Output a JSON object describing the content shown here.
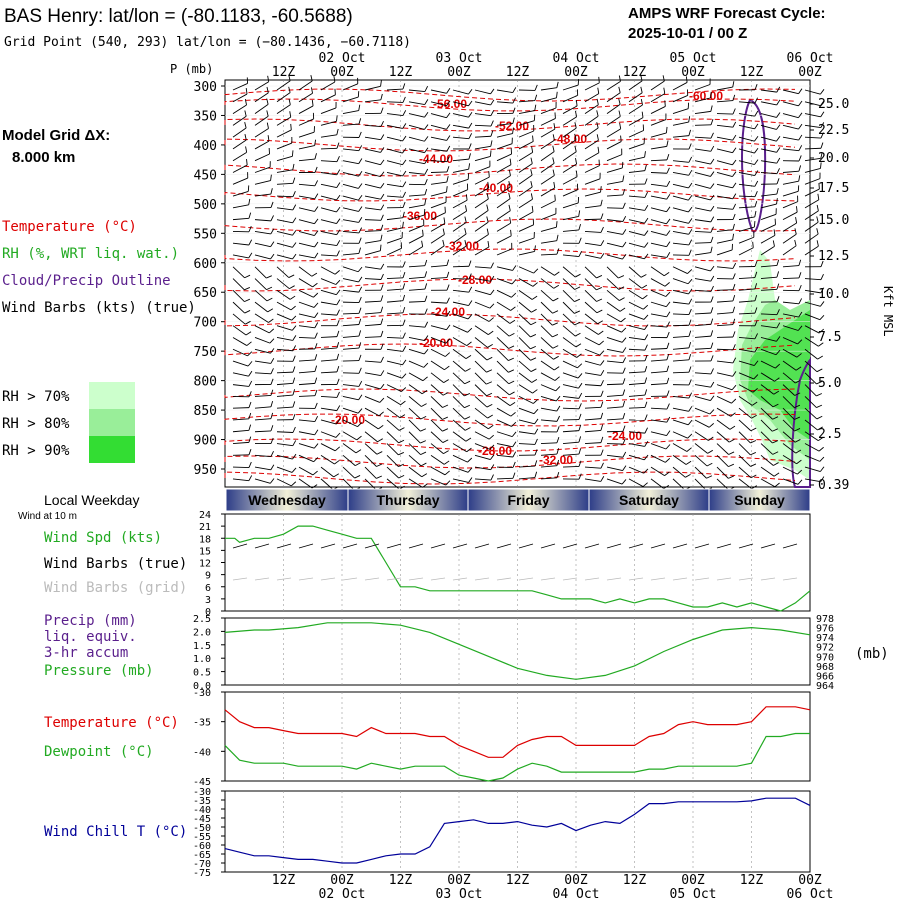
{
  "header": {
    "station_title": "BAS Henry:  lat/lon = (-80.1183, -60.5688)",
    "grid_point": "Grid Point (540, 293) lat/lon = (−80.1436, −60.7118)",
    "cycle_label": "AMPS WRF Forecast Cycle:",
    "cycle_value": "2025-10-01 / 00  Z",
    "model_grid_label": "Model Grid ΔX:",
    "model_grid_value": "8.000 km"
  },
  "legend_left": {
    "temperature": "Temperature (°C)",
    "rh": "RH (%, WRT liq. wat.)",
    "cloud": "Cloud/Precip Outline",
    "wind_barbs": "Wind Barbs (kts) (true)",
    "rh_levels": [
      "RH > 70%",
      "RH > 80%",
      "RH > 90%"
    ],
    "local_weekday": "Local Weekday",
    "wind_at_10m": "Wind at 10 m",
    "wind_spd": "Wind Spd (kts)",
    "wind_barbs_true": "Wind Barbs (true)",
    "wind_barbs_grid": "Wind Barbs (grid)",
    "precip": "Precip (mm)",
    "liq_equiv": "liq. equiv.",
    "accum": "3-hr accum",
    "pressure": "Pressure (mb)",
    "temp2": "Temperature (°C)",
    "dewpoint": "Dewpoint (°C)",
    "wind_chill": "Wind Chill T (°C)"
  },
  "colors": {
    "temperature": "#dd0000",
    "rh70": "#ccffcc",
    "rh80": "#99ee99",
    "rh90": "#33dd33",
    "cloud": "#5a1f8c",
    "wind_chill": "#000099",
    "weekday_band": "#3b4a8a"
  },
  "chart_data": [
    {
      "type": "line",
      "panel": "upper-air cross section",
      "y_axis_label": "P (mb)",
      "y_ticks": [
        "300",
        "350",
        "400",
        "450",
        "500",
        "550",
        "600",
        "650",
        "700",
        "750",
        "800",
        "850",
        "900",
        "950"
      ],
      "right_axis_label": "Kft MSL",
      "right_ticks": [
        "25.0",
        "22.5",
        "20.0",
        "17.5",
        "15.0",
        "12.5",
        "10.0",
        "7.5",
        "5.0",
        "2.5",
        "0.39"
      ],
      "top_time_ticks": [
        "12Z",
        "00Z",
        "12Z",
        "00Z",
        "12Z",
        "00Z",
        "12Z",
        "00Z",
        "12Z",
        "00Z"
      ],
      "top_dates": [
        "02 Oct",
        "03 Oct",
        "04 Oct",
        "05 Oct",
        "06 Oct"
      ],
      "isotherm_labels": [
        "-56.00",
        "-52.00",
        "-48.00",
        "-44.00",
        "-40.00",
        "-36.00",
        "-32.00",
        "-28.00",
        "-24.00",
        "-20.00",
        "-20.00",
        "-24.00",
        "-28.00",
        "-32.00",
        "-60.00"
      ]
    },
    {
      "type": "line",
      "panel": "10 m wind speed",
      "y_ticks": [
        "24",
        "21",
        "18",
        "15",
        "12",
        "9",
        "6",
        "3",
        "0"
      ],
      "ylim": [
        0,
        24
      ],
      "series": [
        {
          "name": "Wind Spd (kts)",
          "x": [
            0,
            2,
            3,
            6,
            9,
            12,
            15,
            18,
            21,
            24,
            27,
            30,
            33,
            36,
            39,
            42,
            45,
            48,
            51,
            54,
            57,
            60,
            63,
            66,
            69,
            72,
            75,
            78,
            81,
            84,
            87,
            90,
            93,
            96,
            99,
            102,
            105,
            108,
            111,
            114,
            117,
            120
          ],
          "values": [
            18,
            18,
            17,
            18,
            18,
            19,
            21,
            21,
            20,
            19,
            18,
            18,
            12,
            6,
            6,
            5,
            5,
            5,
            5,
            5,
            5,
            5,
            5,
            4,
            3,
            3,
            3,
            2,
            3,
            2,
            3,
            3,
            2,
            1,
            1,
            2,
            1,
            2,
            1,
            0,
            2,
            5
          ]
        }
      ]
    },
    {
      "type": "line",
      "panel": "precip and pressure",
      "y_ticks": [
        "2.5",
        "2.0",
        "1.5",
        "1.0",
        "0.5",
        "0.0"
      ],
      "right_ticks": [
        "978",
        "976",
        "974",
        "972",
        "970",
        "968",
        "966",
        "964"
      ],
      "right_axis_label": "(mb)",
      "series": [
        {
          "name": "Pressure (mb)",
          "x": [
            0,
            6,
            9,
            15,
            21,
            24,
            30,
            36,
            42,
            48,
            54,
            60,
            66,
            72,
            78,
            84,
            90,
            96,
            102,
            108,
            114,
            120
          ],
          "values": [
            975,
            975.5,
            975.5,
            976,
            977,
            977,
            977,
            976.5,
            975,
            972.5,
            970,
            967.5,
            966,
            965.2,
            966,
            968,
            971,
            973.5,
            975.5,
            976,
            975.5,
            974.5
          ]
        }
      ]
    },
    {
      "type": "line",
      "panel": "temperature and dewpoint",
      "y_ticks": [
        "-30",
        "-35",
        "-40",
        "-45"
      ],
      "ylim": [
        -45,
        -30
      ],
      "series": [
        {
          "name": "Temperature (°C)",
          "x": [
            0,
            3,
            6,
            9,
            12,
            15,
            18,
            21,
            24,
            27,
            30,
            33,
            36,
            39,
            42,
            45,
            48,
            51,
            54,
            57,
            60,
            63,
            66,
            69,
            72,
            75,
            78,
            81,
            84,
            87,
            90,
            93,
            96,
            99,
            102,
            105,
            108,
            111,
            114,
            117,
            120
          ],
          "values": [
            -33,
            -35,
            -36,
            -36,
            -36.5,
            -37,
            -37,
            -37,
            -37,
            -37.5,
            -36,
            -37,
            -37,
            -37,
            -37.5,
            -37.5,
            -39,
            -40,
            -41,
            -41,
            -39,
            -38,
            -37.5,
            -37.5,
            -39,
            -39,
            -39,
            -39,
            -39,
            -37.5,
            -37,
            -35.5,
            -35,
            -35.5,
            -35.5,
            -35.5,
            -35,
            -32.5,
            -32.5,
            -32.5,
            -33
          ]
        },
        {
          "name": "Dewpoint (°C)",
          "x": [
            0,
            3,
            6,
            9,
            12,
            15,
            18,
            21,
            24,
            27,
            30,
            33,
            36,
            39,
            42,
            45,
            48,
            51,
            54,
            57,
            60,
            63,
            66,
            69,
            72,
            75,
            78,
            81,
            84,
            87,
            90,
            93,
            96,
            99,
            102,
            105,
            108,
            111,
            114,
            117,
            120
          ],
          "values": [
            -39,
            -41.5,
            -42,
            -42,
            -42,
            -42.5,
            -42.5,
            -42.5,
            -42.5,
            -43,
            -42,
            -42.5,
            -43,
            -42.5,
            -42.5,
            -42.5,
            -44,
            -44.5,
            -45,
            -44.5,
            -43,
            -42,
            -42.5,
            -43.5,
            -43.5,
            -43.5,
            -43.5,
            -43.5,
            -43.5,
            -43,
            -43,
            -42.5,
            -42.5,
            -42.5,
            -42.5,
            -42.5,
            -42,
            -37.5,
            -37.5,
            -37,
            -37
          ]
        }
      ]
    },
    {
      "type": "line",
      "panel": "wind chill",
      "y_ticks": [
        "-30",
        "-35",
        "-40",
        "-45",
        "-50",
        "-55",
        "-60",
        "-65",
        "-70",
        "-75"
      ],
      "ylim": [
        -75,
        -30
      ],
      "series": [
        {
          "name": "Wind Chill T (°C)",
          "x": [
            0,
            3,
            6,
            9,
            12,
            15,
            18,
            21,
            24,
            27,
            30,
            33,
            36,
            39,
            42,
            45,
            48,
            51,
            54,
            57,
            60,
            63,
            66,
            69,
            72,
            75,
            78,
            81,
            84,
            87,
            90,
            93,
            96,
            99,
            102,
            105,
            108,
            111,
            114,
            117,
            120
          ],
          "values": [
            -62,
            -64,
            -66,
            -66,
            -67,
            -68,
            -68,
            -69,
            -70,
            -70,
            -68,
            -66,
            -65,
            -65,
            -61,
            -48,
            -47,
            -46,
            -48,
            -48,
            -47,
            -49,
            -50,
            -48,
            -52,
            -49,
            -47,
            -48,
            -43,
            -37,
            -37,
            -36,
            -36,
            -36,
            -36,
            -36,
            -35.5,
            -34,
            -34,
            -34,
            -38
          ]
        }
      ]
    }
  ],
  "bottom_axis": {
    "time_ticks": [
      "12Z",
      "00Z",
      "12Z",
      "00Z",
      "12Z",
      "00Z",
      "12Z",
      "00Z",
      "12Z",
      "00Z"
    ],
    "dates": [
      "02 Oct",
      "03 Oct",
      "04 Oct",
      "05 Oct",
      "06 Oct"
    ]
  },
  "weekdays": [
    "Wednesday",
    "Thursday",
    "Friday",
    "Saturday",
    "Sunday"
  ]
}
